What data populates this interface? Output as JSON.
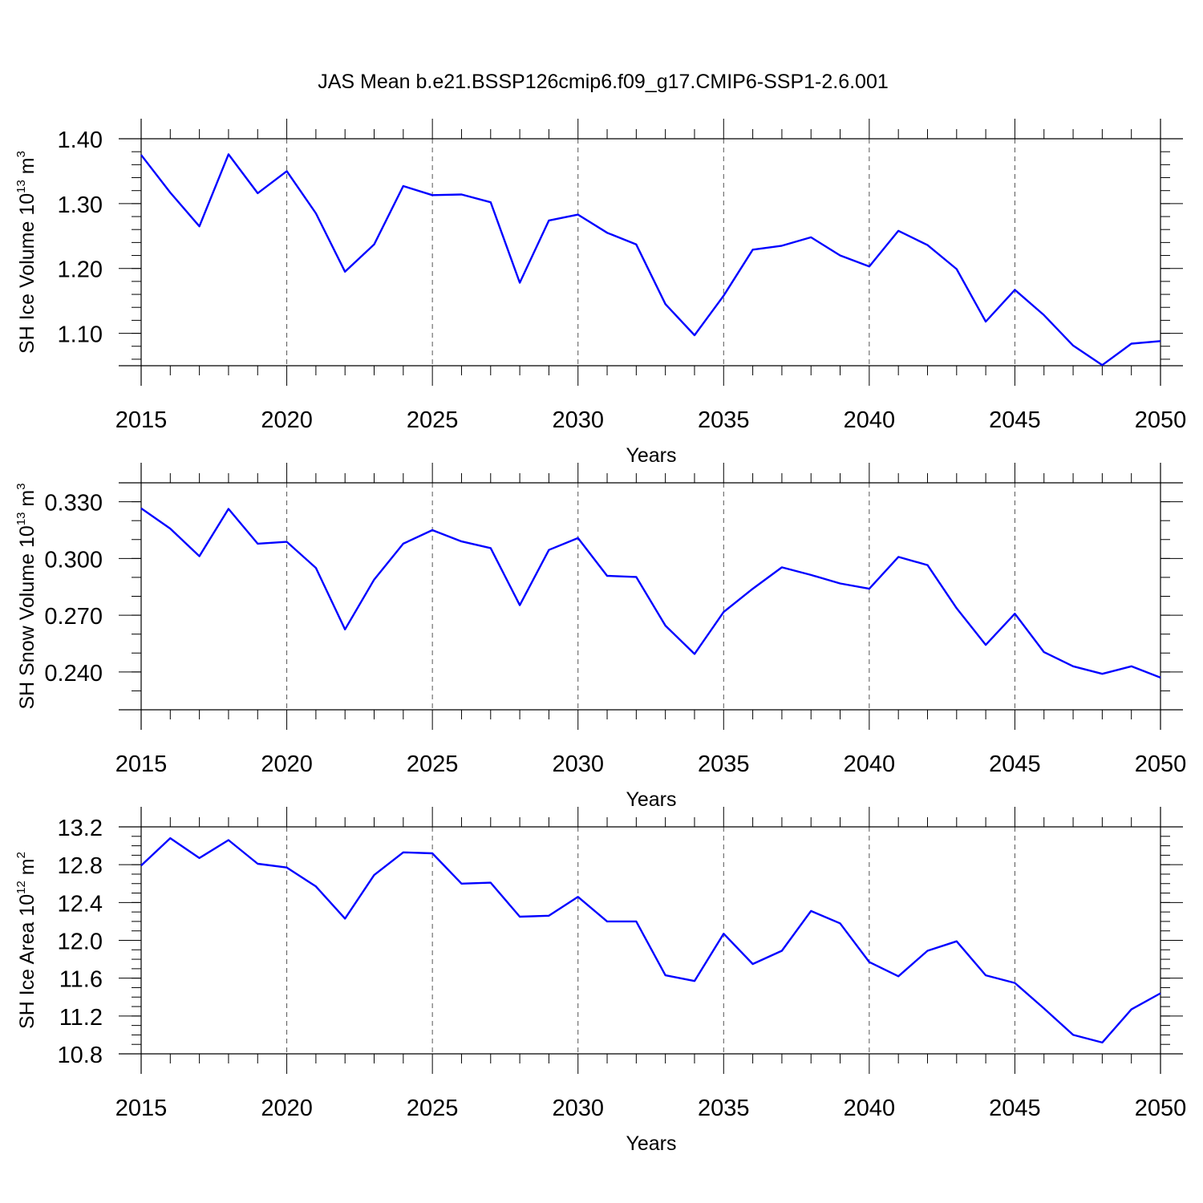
{
  "figure": {
    "title": "JAS Mean b.e21.BSSP126cmip6.f09_g17.CMIP6-SSP1-2.6.001"
  },
  "chart_data": [
    {
      "type": "line",
      "xlabel": "Years",
      "ylabel": "SH Ice Volume 10",
      "ylabel_exp": "13",
      "ylabel_unit": " m",
      "ylabel_unit_exp": "3",
      "xlim": [
        2015,
        2050
      ],
      "ylim": [
        1.05,
        1.4
      ],
      "x_ticks": [
        "2015",
        "2020",
        "2025",
        "2030",
        "2035",
        "2040",
        "2045",
        "2050"
      ],
      "y_ticks": [
        "1.10",
        "1.20",
        "1.30",
        "1.40"
      ],
      "grid": "vertical dashed at major ticks",
      "color": "#0000ff",
      "x": [
        2015,
        2016,
        2017,
        2018,
        2019,
        2020,
        2021,
        2022,
        2023,
        2024,
        2025,
        2026,
        2027,
        2028,
        2029,
        2030,
        2031,
        2032,
        2033,
        2034,
        2035,
        2036,
        2037,
        2038,
        2039,
        2040,
        2041,
        2042,
        2043,
        2044,
        2045,
        2046,
        2047,
        2048,
        2049,
        2050
      ],
      "y": [
        1.375,
        1.317,
        1.265,
        1.376,
        1.316,
        1.35,
        1.285,
        1.195,
        1.237,
        1.327,
        1.313,
        1.314,
        1.302,
        1.178,
        1.274,
        1.283,
        1.255,
        1.237,
        1.145,
        1.097,
        1.158,
        1.229,
        1.235,
        1.248,
        1.22,
        1.203,
        1.258,
        1.236,
        1.199,
        1.118,
        1.167,
        1.128,
        1.081,
        1.051,
        1.084,
        1.088
      ]
    },
    {
      "type": "line",
      "xlabel": "Years",
      "ylabel": "SH Snow Volume 10",
      "ylabel_exp": "13",
      "ylabel_unit": " m",
      "ylabel_unit_exp": "3",
      "xlim": [
        2015,
        2050
      ],
      "ylim": [
        0.22,
        0.34
      ],
      "x_ticks": [
        "2015",
        "2020",
        "2025",
        "2030",
        "2035",
        "2040",
        "2045",
        "2050"
      ],
      "y_ticks": [
        "0.240",
        "0.270",
        "0.300",
        "0.330"
      ],
      "grid": "vertical dashed at major ticks",
      "color": "#0000ff",
      "x": [
        2015,
        2016,
        2017,
        2018,
        2019,
        2020,
        2021,
        2022,
        2023,
        2024,
        2025,
        2026,
        2027,
        2028,
        2029,
        2030,
        2031,
        2032,
        2033,
        2034,
        2035,
        2036,
        2037,
        2038,
        2039,
        2040,
        2041,
        2042,
        2043,
        2044,
        2045,
        2046,
        2047,
        2048,
        2049,
        2050
      ],
      "y": [
        0.3265,
        0.3158,
        0.3012,
        0.3262,
        0.3078,
        0.3088,
        0.295,
        0.2625,
        0.2888,
        0.3078,
        0.315,
        0.309,
        0.3055,
        0.2753,
        0.3045,
        0.3108,
        0.2908,
        0.2902,
        0.2645,
        0.2495,
        0.2717,
        0.284,
        0.2953,
        0.2913,
        0.2868,
        0.284,
        0.3008,
        0.2965,
        0.2737,
        0.2543,
        0.2708,
        0.2505,
        0.243,
        0.239,
        0.243,
        0.237
      ]
    },
    {
      "type": "line",
      "xlabel": "Years",
      "ylabel": "SH Ice Area 10",
      "ylabel_exp": "12",
      "ylabel_unit": " m",
      "ylabel_unit_exp": "2",
      "xlim": [
        2015,
        2050
      ],
      "ylim": [
        10.8,
        13.2
      ],
      "x_ticks": [
        "2015",
        "2020",
        "2025",
        "2030",
        "2035",
        "2040",
        "2045",
        "2050"
      ],
      "y_ticks": [
        "10.8",
        "11.2",
        "11.6",
        "12.0",
        "12.4",
        "12.8",
        "13.2"
      ],
      "grid": "vertical dashed at major ticks",
      "color": "#0000ff",
      "x": [
        2015,
        2016,
        2017,
        2018,
        2019,
        2020,
        2021,
        2022,
        2023,
        2024,
        2025,
        2026,
        2027,
        2028,
        2029,
        2030,
        2031,
        2032,
        2033,
        2034,
        2035,
        2036,
        2037,
        2038,
        2039,
        2040,
        2041,
        2042,
        2043,
        2044,
        2045,
        2046,
        2047,
        2048,
        2049,
        2050
      ],
      "y": [
        12.79,
        13.08,
        12.87,
        13.06,
        12.81,
        12.77,
        12.57,
        12.23,
        12.69,
        12.93,
        12.92,
        12.6,
        12.61,
        12.25,
        12.26,
        12.46,
        12.2,
        12.2,
        11.63,
        11.57,
        12.07,
        11.75,
        11.89,
        12.31,
        12.18,
        11.77,
        11.62,
        11.89,
        11.99,
        11.63,
        11.55,
        11.28,
        11.0,
        10.92,
        11.27,
        11.44
      ]
    }
  ]
}
